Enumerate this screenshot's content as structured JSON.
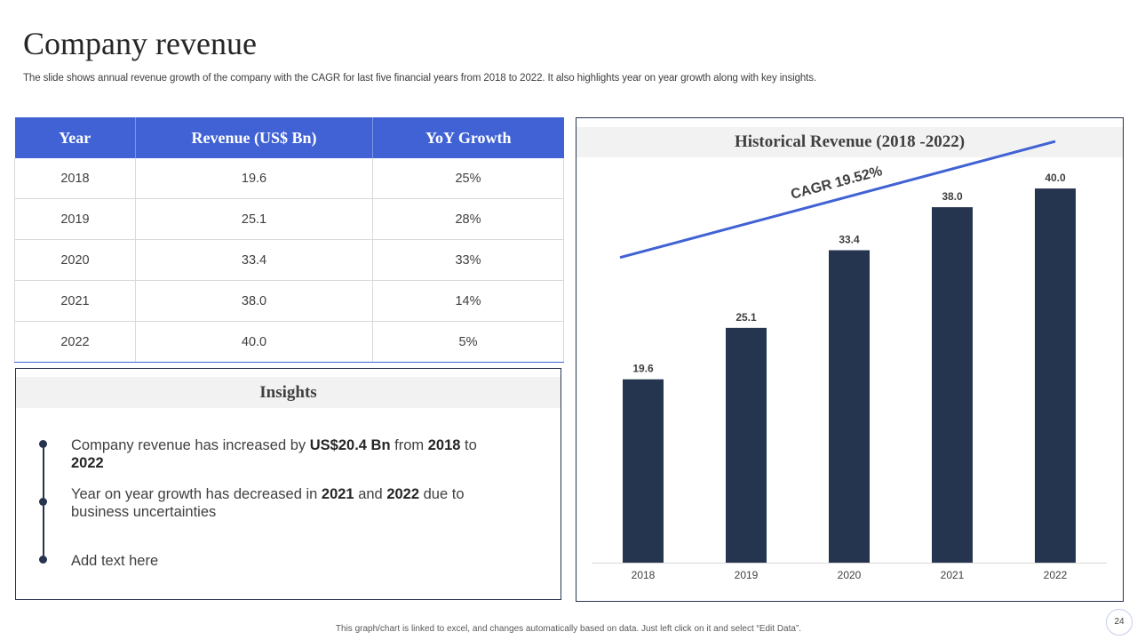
{
  "slide": {
    "title": "Company revenue",
    "subtitle": "The slide shows annual revenue growth of the company with the CAGR for last five financial years from 2018 to 2022. It also highlights year on year growth along with key insights.",
    "footer": "This graph/chart is linked to excel, and changes automatically based on data. Just left click on it and select “Edit Data”.",
    "page_number": "24"
  },
  "table": {
    "headers": [
      "Year",
      "Revenue (US$ Bn)",
      "YoY Growth"
    ],
    "rows": [
      [
        "2018",
        "19.6",
        "25%"
      ],
      [
        "2019",
        "25.1",
        "28%"
      ],
      [
        "2020",
        "33.4",
        "33%"
      ],
      [
        "2021",
        "38.0",
        "14%"
      ],
      [
        "2022",
        "40.0",
        "5%"
      ]
    ]
  },
  "insights": {
    "title": "Insights",
    "b1": {
      "t1": "Company revenue  has increased by ",
      "b1": "US$20.4 Bn",
      "t2": " from ",
      "b2": "2018",
      "t3": " to ",
      "b3": "2022"
    },
    "b2": {
      "t1": "Year on year growth  has decreased in ",
      "b1": "2021",
      "t2": " and ",
      "b2": "2022",
      "t3": " due to business uncertainties"
    },
    "b3": {
      "t1": "Add text here"
    }
  },
  "chart_data": {
    "type": "bar",
    "title": "Historical Revenue (2018 -2022)",
    "categories": [
      "2018",
      "2019",
      "2020",
      "2021",
      "2022"
    ],
    "values": [
      19.6,
      25.1,
      33.4,
      38.0,
      40.0
    ],
    "value_labels": [
      "19.6",
      "25.1",
      "33.4",
      "38.0",
      "40.0"
    ],
    "ylim": [
      0,
      42
    ],
    "xlabel": "",
    "ylabel": "",
    "annotation": "CAGR 19.52%",
    "colors": {
      "bar": "#26354f",
      "trend": "#4062d4",
      "header": "#4062d4"
    }
  }
}
